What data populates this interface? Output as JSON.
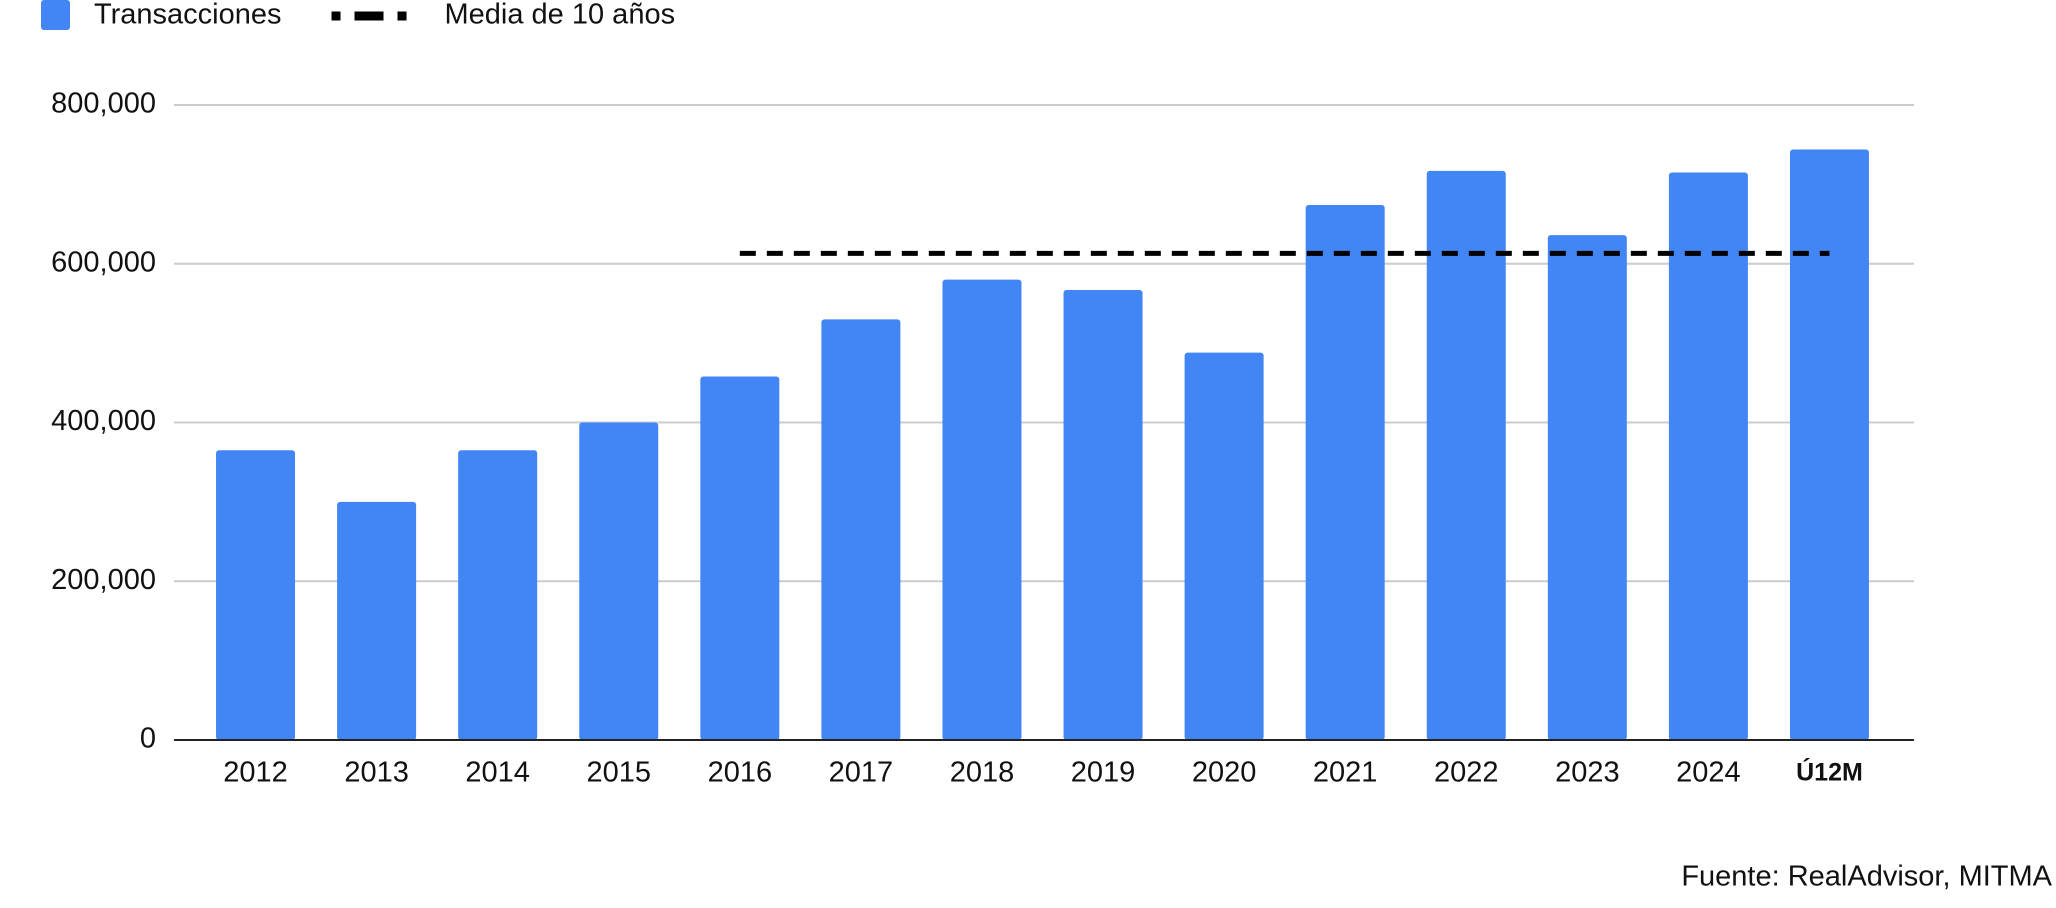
{
  "chart_data": {
    "type": "bar",
    "categories": [
      "2012",
      "2013",
      "2014",
      "2015",
      "2016",
      "2017",
      "2018",
      "2019",
      "2020",
      "2021",
      "2022",
      "2023",
      "2024",
      "Ú12M"
    ],
    "series": [
      {
        "name": "Transacciones",
        "color": "#4285f4",
        "type": "bar",
        "values": [
          365000,
          300000,
          365000,
          400000,
          458000,
          530000,
          580000,
          567000,
          488000,
          674000,
          717000,
          636000,
          715000,
          744000
        ]
      },
      {
        "name": "Media de 10 años",
        "color": "#000000",
        "type": "line",
        "dashed": true,
        "values": [
          null,
          null,
          null,
          null,
          613000,
          613000,
          613000,
          613000,
          613000,
          613000,
          613000,
          613000,
          613000,
          613000
        ]
      }
    ],
    "ylim": [
      0,
      800000
    ],
    "yticks": [
      0,
      {
        "value": 200000,
        "label": "200,000"
      },
      {
        "value": 400000,
        "label": "400,000"
      },
      {
        "value": 600000,
        "label": "600,000"
      },
      {
        "value": 800000,
        "label": "800,000"
      }
    ],
    "grid": true,
    "legend": "top",
    "source": "Fuente: RealAdvisor, MITMA"
  }
}
